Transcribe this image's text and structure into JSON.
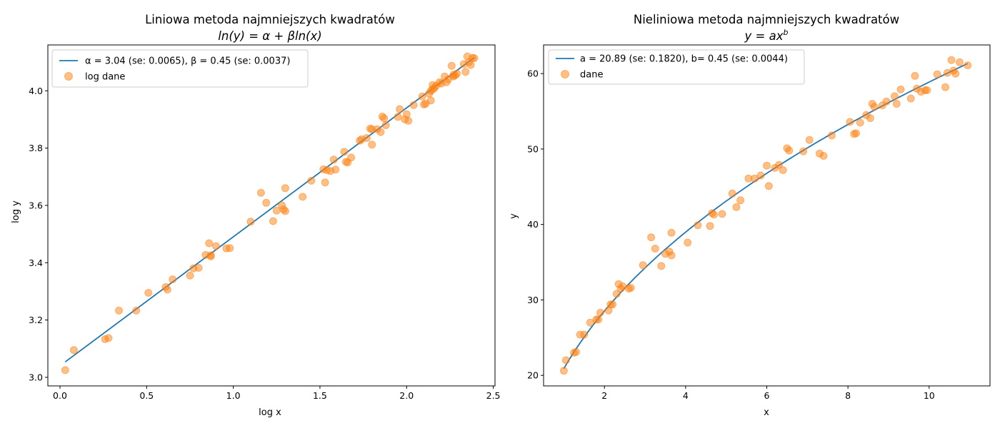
{
  "colors": {
    "line": "#1f77b4",
    "points": "#ff7f0e",
    "axes": "#000000",
    "legend_border": "#cccccc",
    "background": "#ffffff"
  },
  "chart_data": [
    {
      "type": "scatter",
      "title_line1": "Liniowa metoda najmniejszych kwadratów",
      "title_line2": "ln(y) = α + βln(x)",
      "xlabel": "log x",
      "ylabel": "log y",
      "xlim": [
        -0.07,
        2.51
      ],
      "ylim": [
        2.97,
        4.16
      ],
      "xticks": [
        0.0,
        0.5,
        1.0,
        1.5,
        2.0,
        2.5
      ],
      "xtick_labels": [
        "0.0",
        "0.5",
        "1.0",
        "1.5",
        "2.0",
        "2.5"
      ],
      "yticks": [
        3.0,
        3.2,
        3.4,
        3.6,
        3.8,
        4.0
      ],
      "ytick_labels": [
        "3.0",
        "3.2",
        "3.4",
        "3.6",
        "3.8",
        "4.0"
      ],
      "grid": false,
      "legend_position": "upper-left",
      "series": [
        {
          "name": "α = 3.04 (se: 0.0065), β = 0.45 (se: 0.0037)",
          "kind": "line",
          "x": [
            0.03,
            2.39
          ],
          "y": [
            3.054,
            4.116
          ]
        },
        {
          "name": "log dane",
          "kind": "scatter",
          "x": [
            0.03,
            0.08,
            0.26,
            0.28,
            0.34,
            0.44,
            0.51,
            0.61,
            0.62,
            0.65,
            0.75,
            0.77,
            0.8,
            0.84,
            0.86,
            0.87,
            0.87,
            0.9,
            0.96,
            0.98,
            1.1,
            1.16,
            1.19,
            1.23,
            1.25,
            1.28,
            1.29,
            1.3,
            1.3,
            1.4,
            1.45,
            1.52,
            1.53,
            1.54,
            1.56,
            1.58,
            1.59,
            1.64,
            1.65,
            1.66,
            1.68,
            1.73,
            1.74,
            1.77,
            1.79,
            1.8,
            1.8,
            1.83,
            1.85,
            1.86,
            1.87,
            1.88,
            1.95,
            1.96,
            1.99,
            2.0,
            2.01,
            2.04,
            2.09,
            2.1,
            2.11,
            2.13,
            2.14,
            2.14,
            2.15,
            2.15,
            2.16,
            2.17,
            2.19,
            2.2,
            2.22,
            2.23,
            2.24,
            2.26,
            2.27,
            2.27,
            2.28,
            2.29,
            2.33,
            2.34,
            2.35,
            2.36,
            2.37,
            2.38,
            2.39
          ],
          "y": [
            3.025,
            3.095,
            3.133,
            3.137,
            3.233,
            3.233,
            3.295,
            3.315,
            3.306,
            3.342,
            3.355,
            3.38,
            3.382,
            3.427,
            3.468,
            3.426,
            3.422,
            3.458,
            3.45,
            3.451,
            3.543,
            3.644,
            3.609,
            3.545,
            3.582,
            3.6,
            3.586,
            3.66,
            3.58,
            3.63,
            3.686,
            3.726,
            3.68,
            3.723,
            3.72,
            3.76,
            3.725,
            3.787,
            3.752,
            3.75,
            3.767,
            3.826,
            3.831,
            3.835,
            3.868,
            3.812,
            3.866,
            3.866,
            3.856,
            3.91,
            3.904,
            3.88,
            3.909,
            3.936,
            3.9,
            3.918,
            3.895,
            3.95,
            3.98,
            3.952,
            3.955,
            3.99,
            4.0,
            3.966,
            4.02,
            4.005,
            4.01,
            4.017,
            4.03,
            4.025,
            4.05,
            4.03,
            4.04,
            4.087,
            4.05,
            4.056,
            4.054,
            4.06,
            4.093,
            4.066,
            4.12,
            4.1,
            4.09,
            4.115,
            4.114
          ]
        }
      ]
    },
    {
      "type": "scatter",
      "title_line1": "Nieliniowa metoda najmniejszych kwadratów",
      "title_line2": "y = ax^b",
      "xlabel": "x",
      "ylabel": "y",
      "xlim": [
        0.5,
        11.5
      ],
      "ylim": [
        18.6,
        63.8
      ],
      "xticks": [
        2,
        4,
        6,
        8,
        10
      ],
      "xtick_labels": [
        "2",
        "4",
        "6",
        "8",
        "10"
      ],
      "yticks": [
        20,
        30,
        40,
        50,
        60
      ],
      "ytick_labels": [
        "20",
        "30",
        "40",
        "50",
        "60"
      ],
      "grid": false,
      "legend_position": "upper-left",
      "series": [
        {
          "name": "a = 20.89 (se: 0.1820), b= 0.45 (se: 0.0044)",
          "kind": "line",
          "fit": {
            "a": 20.89,
            "b": 0.45
          },
          "x_range": [
            1.0,
            10.95
          ]
        },
        {
          "name": "dane",
          "kind": "scatter",
          "x": [
            1.0,
            1.05,
            1.25,
            1.3,
            1.4,
            1.5,
            1.65,
            1.8,
            1.85,
            1.9,
            2.1,
            2.15,
            2.2,
            2.3,
            2.35,
            2.4,
            2.45,
            2.6,
            2.65,
            2.95,
            3.15,
            3.25,
            3.4,
            3.5,
            3.6,
            3.65,
            3.65,
            4.05,
            4.3,
            4.6,
            4.65,
            4.7,
            4.9,
            5.15,
            5.25,
            5.35,
            5.55,
            5.7,
            5.85,
            6.0,
            6.05,
            6.2,
            6.3,
            6.4,
            6.5,
            6.55,
            6.9,
            7.05,
            7.3,
            7.4,
            7.6,
            8.05,
            8.15,
            8.2,
            8.3,
            8.45,
            8.55,
            8.6,
            8.65,
            8.85,
            8.95,
            9.15,
            9.2,
            9.3,
            9.55,
            9.65,
            9.7,
            9.8,
            9.9,
            9.95,
            10.2,
            10.4,
            10.45,
            10.55,
            10.6,
            10.65,
            10.75,
            10.95
          ],
          "y": [
            20.6,
            22.0,
            23.0,
            23.1,
            25.4,
            25.4,
            27.0,
            27.4,
            27.4,
            28.3,
            28.6,
            29.4,
            29.4,
            30.8,
            32.1,
            31.5,
            31.8,
            31.5,
            31.6,
            34.6,
            38.3,
            36.8,
            34.5,
            36.1,
            36.4,
            35.9,
            38.9,
            37.6,
            39.9,
            39.8,
            41.5,
            41.3,
            41.4,
            44.1,
            42.3,
            43.2,
            46.1,
            46.1,
            46.5,
            47.8,
            45.1,
            47.5,
            47.9,
            47.2,
            50.1,
            49.8,
            49.7,
            51.2,
            49.4,
            49.1,
            51.8,
            53.6,
            52.0,
            52.1,
            53.5,
            54.5,
            54.1,
            56.0,
            55.6,
            55.8,
            56.3,
            57.0,
            56.0,
            57.9,
            56.7,
            59.7,
            58.0,
            57.6,
            57.8,
            57.8,
            59.9,
            58.2,
            60.1,
            61.8,
            60.4,
            60.0,
            61.5,
            61.1
          ]
        }
      ]
    }
  ]
}
